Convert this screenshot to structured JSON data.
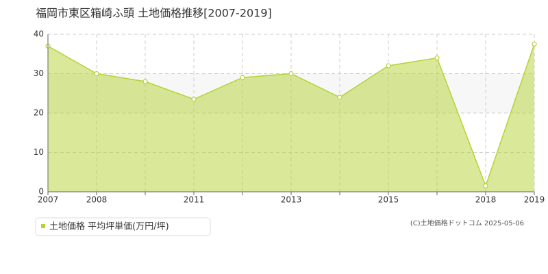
{
  "chart_data": {
    "type": "area",
    "title": "福岡市東区箱崎ふ頭 土地価格推移[2007-2019]",
    "categories": [
      "2007",
      "2008",
      null,
      "2011",
      null,
      "2013",
      null,
      "2015",
      null,
      "2018",
      "2019"
    ],
    "series": [
      {
        "name": "土地価格 平均坪単価(万円/坪)",
        "color": "#b5d334",
        "values": [
          37,
          30,
          28,
          23.5,
          29,
          30,
          24,
          32,
          34,
          1.5,
          37.5
        ]
      }
    ],
    "ylim": [
      0,
      40
    ],
    "yticks": [
      0,
      10,
      20,
      30,
      40
    ],
    "grid": true,
    "annotation": "(C)土地価格ドットコム 2025-05-06"
  }
}
